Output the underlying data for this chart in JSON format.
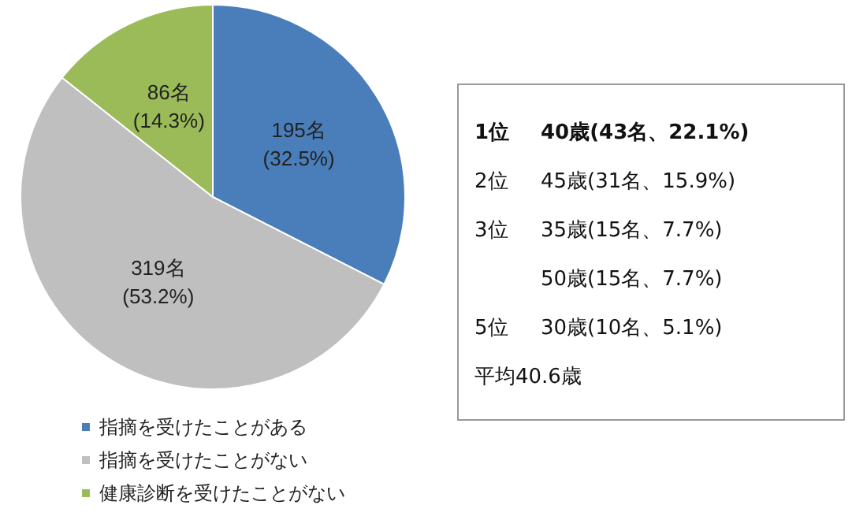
{
  "chart_data": [
    {
      "type": "pie",
      "categories": [
        "指摘を受けたことがある",
        "指摘を受けたことがない",
        "健康診断を受けたことがない"
      ],
      "values": [
        195,
        319,
        86
      ],
      "colors": [
        "#4a7ebb",
        "#bfbfbf",
        "#9bbb59"
      ],
      "value_labels": [
        "195名\n(32.5%)",
        "319名\n(53.2%)",
        "86名\n(14.3%)"
      ],
      "legend": "bottom left"
    },
    {
      "type": "other",
      "annotations": [
        "1位 40歳(43名、22.1%)",
        "2位 45歳(31名、15.9%)",
        "3位 35歳(15名、7.7%)",
        " 50歳(15名、7.7%)",
        "5位 30歳(10名、5.1%)",
        "平均40.6歳"
      ]
    }
  ]
}
